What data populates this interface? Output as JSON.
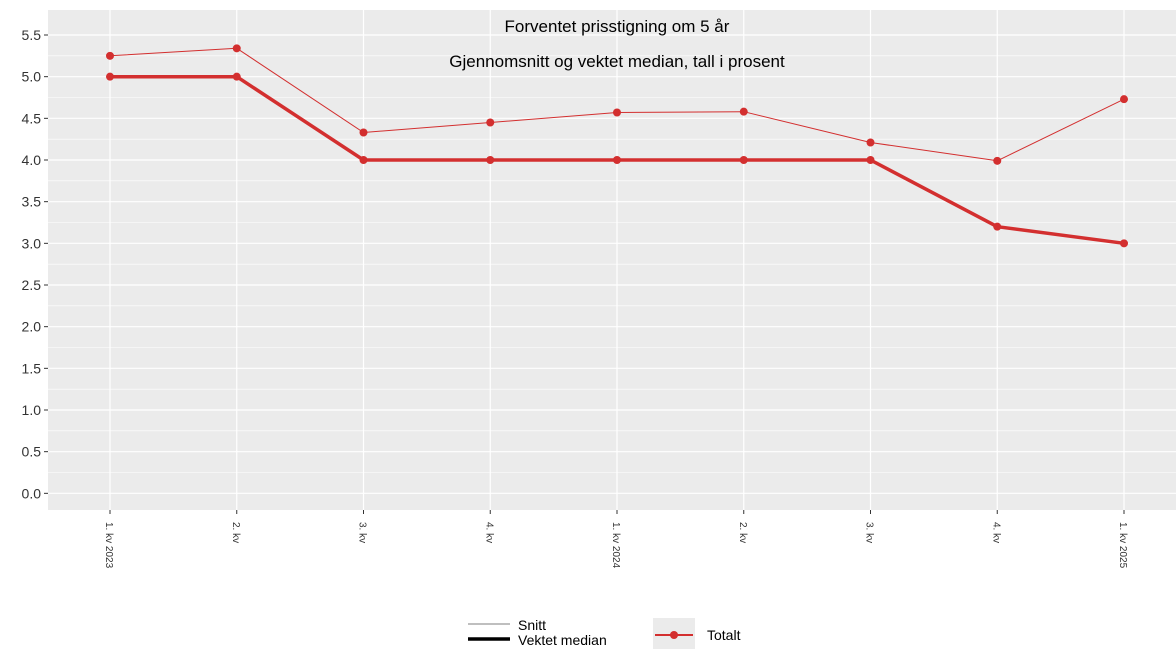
{
  "chart_data": {
    "type": "line",
    "title": "Forventet prisstigning om 5 år",
    "subtitle": "Gjennomsnitt og vektet median, tall i prosent",
    "categories": [
      "1. kv 2023",
      "2. kv",
      "3. kv",
      "4. kv",
      "1. kv 2024",
      "2. kv",
      "3. kv",
      "4. kv",
      "1. kv 2025"
    ],
    "series": [
      {
        "name": "Snitt",
        "group": "Totalt",
        "values": [
          5.25,
          5.34,
          4.33,
          4.45,
          4.57,
          4.58,
          4.21,
          3.99,
          4.73
        ]
      },
      {
        "name": "Vektet median",
        "group": "Totalt",
        "values": [
          5.0,
          5.0,
          4.0,
          4.0,
          4.0,
          4.0,
          4.0,
          3.2,
          3.0
        ]
      }
    ],
    "yticks": [
      "0.0",
      "0.5",
      "1.0",
      "1.5",
      "2.0",
      "2.5",
      "3.0",
      "3.5",
      "4.0",
      "4.5",
      "5.0",
      "5.5"
    ],
    "ylim": [
      -0.2,
      5.8
    ],
    "grid": true,
    "legend": {
      "position": "bottom",
      "linetype_items": [
        "Snitt",
        "Vektet median"
      ],
      "color_items": [
        "Totalt"
      ]
    },
    "colors": {
      "series": "#d32f2f",
      "panel": "#ebebeb",
      "grid": "#ffffff",
      "axis_text": "#333333"
    }
  }
}
